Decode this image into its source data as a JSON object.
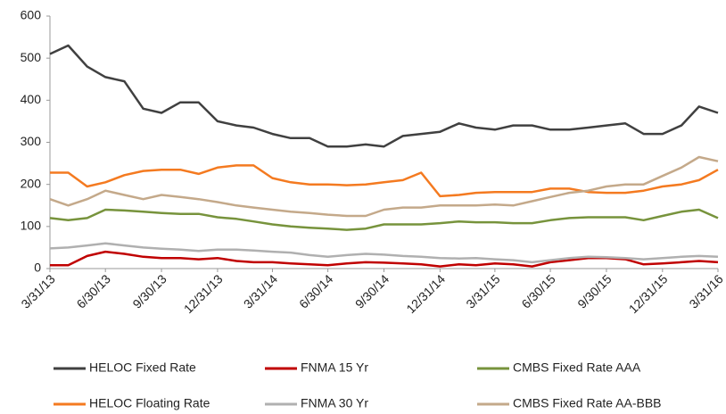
{
  "chart_data": {
    "type": "line",
    "x": [
      "3/31/13",
      "4/30/13",
      "5/31/13",
      "6/30/13",
      "7/31/13",
      "8/31/13",
      "9/30/13",
      "10/31/13",
      "11/30/13",
      "12/31/13",
      "1/31/14",
      "2/28/14",
      "3/31/14",
      "4/30/14",
      "5/31/14",
      "6/30/14",
      "7/31/14",
      "8/31/14",
      "9/30/14",
      "10/31/14",
      "11/30/14",
      "12/31/14",
      "1/31/15",
      "2/28/15",
      "3/31/15",
      "4/30/15",
      "5/31/15",
      "6/30/15",
      "7/31/15",
      "8/31/15",
      "9/30/15",
      "10/31/15",
      "11/30/15",
      "12/31/15",
      "1/31/16",
      "2/29/16",
      "3/31/16"
    ],
    "xticks": [
      "3/31/13",
      "6/30/13",
      "9/30/13",
      "12/31/13",
      "3/31/14",
      "6/30/14",
      "9/30/14",
      "12/31/14",
      "3/31/15",
      "6/30/15",
      "9/30/15",
      "12/31/15",
      "3/31/16"
    ],
    "ylim": [
      0,
      600
    ],
    "yticks": [
      0,
      100,
      200,
      300,
      400,
      500,
      600
    ],
    "series": [
      {
        "name": "HELOC Fixed Rate",
        "color": "#404040",
        "values": [
          510,
          530,
          480,
          455,
          445,
          380,
          370,
          395,
          395,
          350,
          340,
          335,
          320,
          310,
          310,
          290,
          290,
          295,
          290,
          315,
          320,
          325,
          345,
          335,
          330,
          340,
          340,
          330,
          330,
          335,
          340,
          345,
          320,
          320,
          340,
          385,
          370
        ]
      },
      {
        "name": "FNMA 15 Yr",
        "color": "#c00000",
        "values": [
          8,
          8,
          30,
          40,
          35,
          28,
          25,
          25,
          22,
          25,
          18,
          15,
          15,
          12,
          10,
          8,
          12,
          15,
          14,
          12,
          10,
          5,
          10,
          8,
          12,
          10,
          5,
          15,
          20,
          25,
          25,
          22,
          10,
          12,
          15,
          18,
          15
        ]
      },
      {
        "name": "CMBS Fixed Rate AAA",
        "color": "#77933c",
        "values": [
          120,
          115,
          120,
          140,
          138,
          135,
          132,
          130,
          130,
          122,
          118,
          112,
          105,
          100,
          97,
          95,
          92,
          95,
          105,
          105,
          105,
          108,
          112,
          110,
          110,
          108,
          108,
          115,
          120,
          122,
          122,
          122,
          115,
          125,
          135,
          140,
          120
        ]
      },
      {
        "name": "HELOC Floating Rate",
        "color": "#f47a20",
        "values": [
          228,
          228,
          195,
          205,
          222,
          232,
          235,
          235,
          225,
          240,
          245,
          245,
          215,
          205,
          200,
          200,
          198,
          200,
          205,
          210,
          228,
          172,
          175,
          180,
          182,
          182,
          182,
          190,
          190,
          182,
          180,
          180,
          185,
          195,
          200,
          210,
          235
        ]
      },
      {
        "name": "FNMA 30 Yr",
        "color": "#b0b0b0",
        "values": [
          48,
          50,
          55,
          60,
          55,
          50,
          47,
          45,
          42,
          45,
          45,
          43,
          40,
          38,
          32,
          28,
          32,
          35,
          33,
          30,
          28,
          25,
          24,
          25,
          22,
          20,
          15,
          20,
          25,
          28,
          27,
          25,
          22,
          25,
          28,
          30,
          28
        ]
      },
      {
        "name": "CMBS Fixed Rate AA-BBB",
        "color": "#c4a98a",
        "values": [
          165,
          150,
          165,
          185,
          175,
          165,
          175,
          170,
          165,
          158,
          150,
          145,
          140,
          135,
          132,
          128,
          125,
          125,
          140,
          145,
          145,
          150,
          150,
          150,
          152,
          150,
          160,
          170,
          180,
          185,
          195,
          200,
          200,
          220,
          240,
          265,
          255
        ]
      }
    ]
  }
}
